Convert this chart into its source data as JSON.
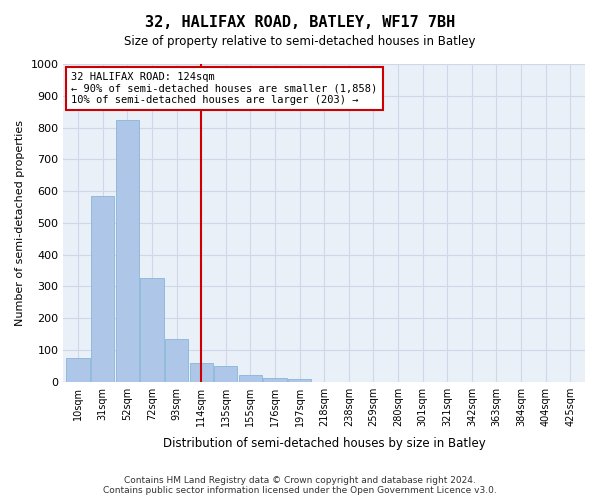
{
  "title": "32, HALIFAX ROAD, BATLEY, WF17 7BH",
  "subtitle": "Size of property relative to semi-detached houses in Batley",
  "xlabel": "Distribution of semi-detached houses by size in Batley",
  "ylabel": "Number of semi-detached properties",
  "annotation_line1": "32 HALIFAX ROAD: 124sqm",
  "annotation_line2": "← 90% of semi-detached houses are smaller (1,858)",
  "annotation_line3": "10% of semi-detached houses are larger (203) →",
  "bin_labels": [
    "10sqm",
    "31sqm",
    "52sqm",
    "72sqm",
    "93sqm",
    "114sqm",
    "135sqm",
    "155sqm",
    "176sqm",
    "197sqm",
    "218sqm",
    "238sqm",
    "259sqm",
    "280sqm",
    "301sqm",
    "321sqm",
    "342sqm",
    "363sqm",
    "384sqm",
    "404sqm",
    "425sqm"
  ],
  "bar_values": [
    75,
    585,
    825,
    325,
    135,
    60,
    48,
    20,
    13,
    7,
    0,
    0,
    0,
    0,
    0,
    0,
    0,
    0,
    0,
    0,
    0
  ],
  "bar_color": "#aec6e8",
  "bar_edge_color": "#7aaed4",
  "vline_color": "#cc0000",
  "vline_x": 5.5,
  "grid_color": "#d0d8e8",
  "background_color": "#eaf0f8",
  "ylim": [
    0,
    1000
  ],
  "yticks": [
    0,
    100,
    200,
    300,
    400,
    500,
    600,
    700,
    800,
    900,
    1000
  ],
  "footer_line1": "Contains HM Land Registry data © Crown copyright and database right 2024.",
  "footer_line2": "Contains public sector information licensed under the Open Government Licence v3.0."
}
